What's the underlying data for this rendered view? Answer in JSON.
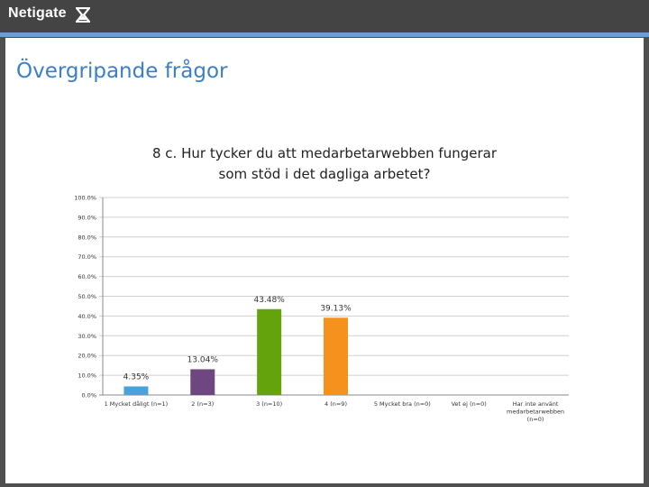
{
  "header": {
    "brand": "Netigate",
    "logo_icon": "netigate-hourglass-icon"
  },
  "slide": {
    "title": "Övergripande frågor"
  },
  "colors": {
    "topbar": "#444444",
    "strip": "#6aa0cf",
    "title": "#3c7fc4"
  },
  "chart_data": {
    "type": "bar",
    "title_lines": [
      "8 c. Hur tycker du att medarbetarwebben fungerar",
      "som stöd i det dagliga arbetet?"
    ],
    "categories": [
      [
        "1 Mycket dåligt (n=1)"
      ],
      [
        "2 (n=3)"
      ],
      [
        "3 (n=10)"
      ],
      [
        "4 (n=9)"
      ],
      [
        "5 Mycket bra (n=0)"
      ],
      [
        "Vet ej (n=0)"
      ],
      [
        "Har inte använt",
        "medarbetarwebben",
        "(n=0)"
      ]
    ],
    "values": [
      4.35,
      13.04,
      43.48,
      39.13,
      0,
      0,
      0
    ],
    "value_labels": [
      "4.35%",
      "13.04%",
      "43.48%",
      "39.13%",
      "",
      "",
      ""
    ],
    "colors": [
      "#4aa3d8",
      "#6e4680",
      "#65a30d",
      "#f5921e",
      "#999999",
      "#999999",
      "#999999"
    ],
    "ylim": [
      0,
      100
    ],
    "yticks": [
      "0.0%",
      "10.0%",
      "20.0%",
      "30.0%",
      "40.0%",
      "50.0%",
      "60.0%",
      "70.0%",
      "80.0%",
      "90.0%",
      "100.0%"
    ],
    "grid": true,
    "legend": "none"
  }
}
